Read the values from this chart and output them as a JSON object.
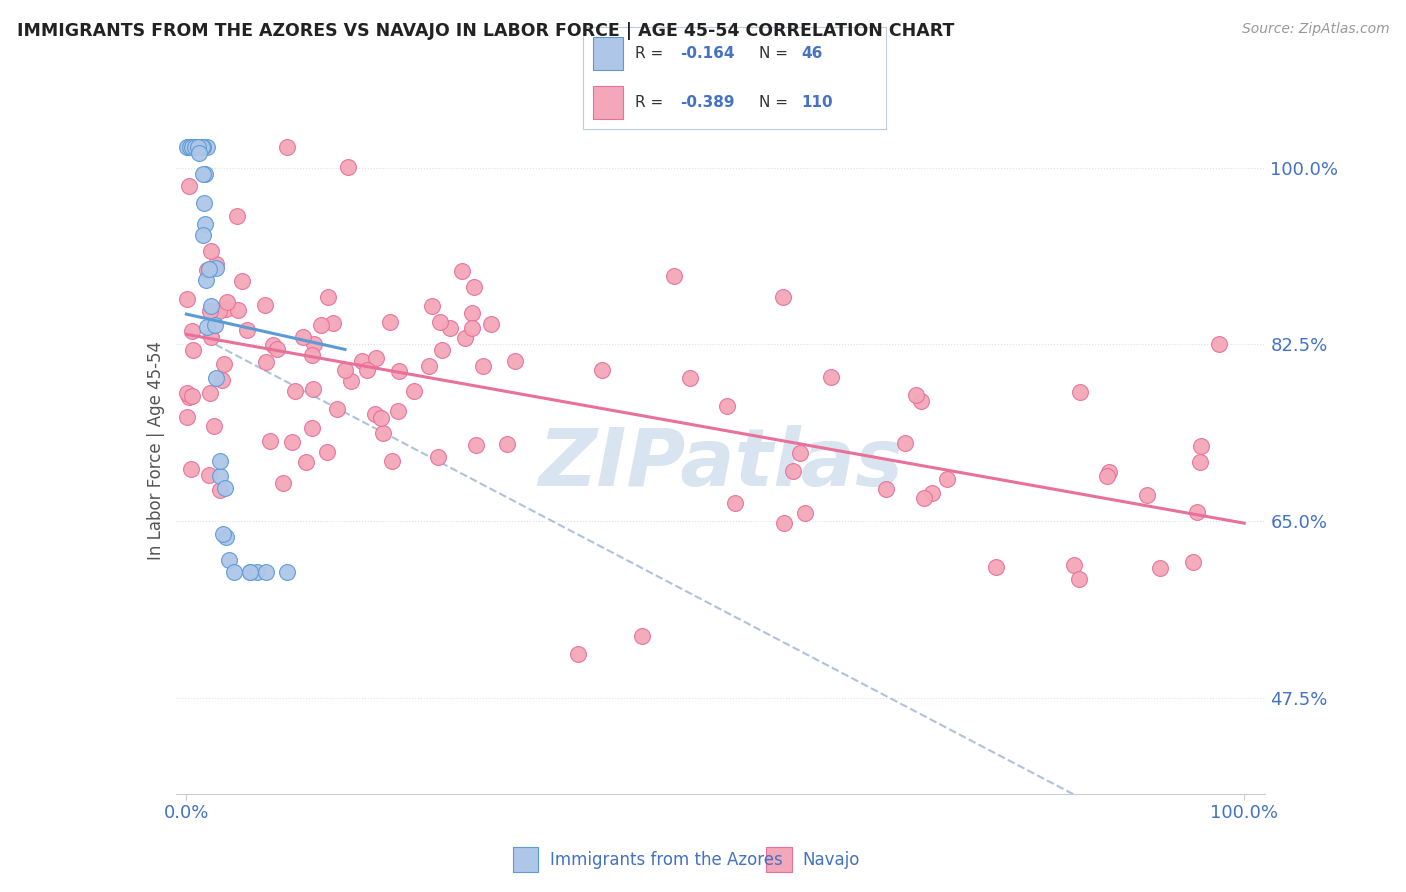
{
  "title": "IMMIGRANTS FROM THE AZORES VS NAVAJO IN LABOR FORCE | AGE 45-54 CORRELATION CHART",
  "source": "Source: ZipAtlas.com",
  "ylabel": "In Labor Force | Age 45-54",
  "xlim": [
    0.0,
    1.0
  ],
  "ylim": [
    0.38,
    1.06
  ],
  "x_tick_labels": [
    "0.0%",
    "100.0%"
  ],
  "y_tick_labels_right": [
    "47.5%",
    "65.0%",
    "82.5%",
    "100.0%"
  ],
  "y_tick_values_right": [
    0.475,
    0.65,
    0.825,
    1.0
  ],
  "legend_r_blue": "-0.164",
  "legend_n_blue": "46",
  "legend_r_pink": "-0.389",
  "legend_n_pink": "110",
  "blue_color": "#aec6e8",
  "pink_color": "#f4a7b9",
  "blue_edge_color": "#5b9bd5",
  "pink_edge_color": "#e8709a",
  "blue_line_color": "#5b9bd5",
  "pink_line_color": "#e8709a",
  "dashed_line_color": "#a0b8d8",
  "title_color": "#222222",
  "source_color": "#999999",
  "axis_label_color": "#555555",
  "tick_label_color": "#4472c4",
  "background_color": "#ffffff",
  "grid_color": "#e0e0e0",
  "watermark_color": "#d8e4f0"
}
